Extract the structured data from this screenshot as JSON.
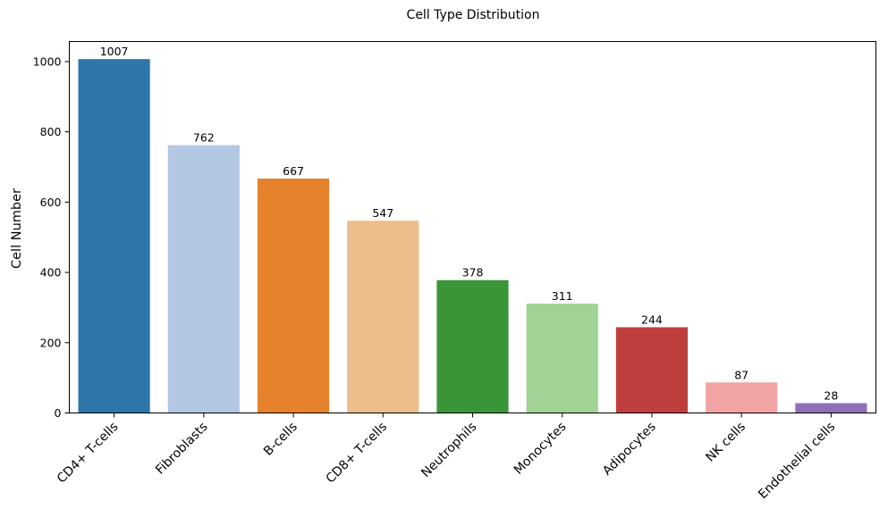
{
  "chart_data": {
    "type": "bar",
    "title": "Cell Type Distribution",
    "xlabel": "",
    "ylabel": "Cell Number",
    "categories": [
      "CD4+ T-cells",
      "Fibroblasts",
      "B-cells",
      "CD8+ T-cells",
      "Neutrophils",
      "Monocytes",
      "Adipocytes",
      "NK cells",
      "Endothelial cells"
    ],
    "values": [
      1007,
      762,
      667,
      547,
      378,
      311,
      244,
      87,
      28
    ],
    "data_labels": [
      "1007",
      "762",
      "667",
      "547",
      "378",
      "311",
      "244",
      "87",
      "28"
    ],
    "colors": [
      "#2e75aa",
      "#b4c7e2",
      "#e5822b",
      "#eebd8c",
      "#3a9538",
      "#a0d394",
      "#bf3e3e",
      "#f1a4a3",
      "#906fb6"
    ],
    "ylim": [
      0,
      1057
    ],
    "yticks": [
      0,
      200,
      400,
      600,
      800,
      1000
    ],
    "ytick_labels": [
      "0",
      "200",
      "400",
      "600",
      "800",
      "1000"
    ],
    "grid": false,
    "legend": "none"
  }
}
